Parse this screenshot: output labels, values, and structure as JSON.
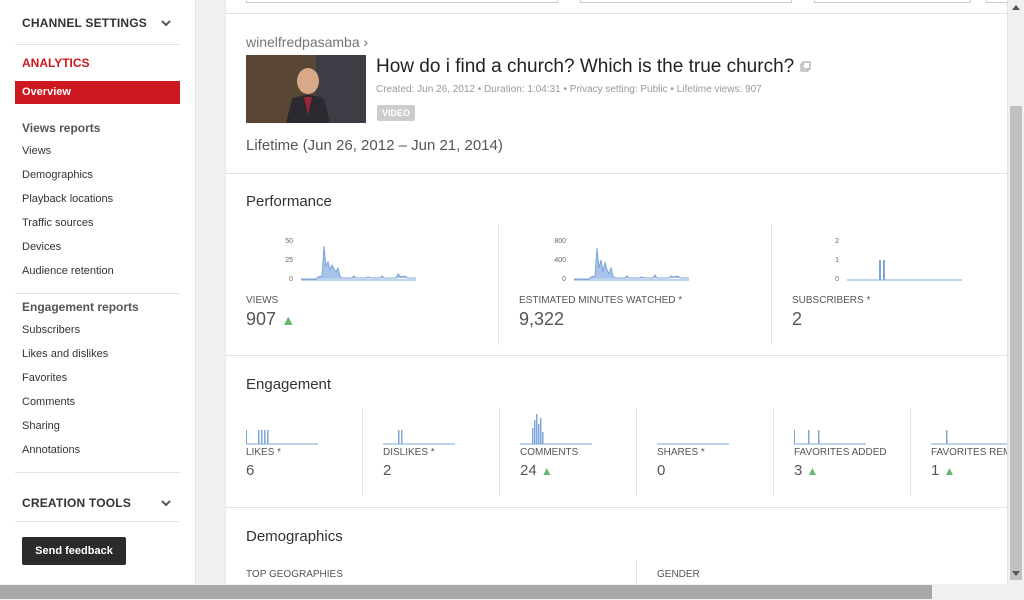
{
  "sidebar": {
    "channel_settings": "CHANNEL SETTINGS",
    "analytics": "ANALYTICS",
    "overview": "Overview",
    "views_reports": "Views reports",
    "views_items": [
      "Views",
      "Demographics",
      "Playback locations",
      "Traffic sources",
      "Devices",
      "Audience retention"
    ],
    "engagement_reports": "Engagement reports",
    "engagement_items": [
      "Subscribers",
      "Likes and dislikes",
      "Favorites",
      "Comments",
      "Sharing",
      "Annotations"
    ],
    "creation_tools": "CREATION TOOLS",
    "send_feedback": "Send feedback"
  },
  "video": {
    "channel": "winelfredpasamba ›",
    "title": "How do i find a church? Which is the true church?",
    "meta": "Created: Jun 26, 2012  •  Duration: 1:04:31  •  Privacy setting: Public  •  Lifetime views: 907",
    "badge": "VIDEO",
    "period": "Lifetime (Jun 26, 2012 – Jun 21, 2014)"
  },
  "performance": {
    "title": "Performance",
    "views": {
      "label": "VIEWS",
      "value": "907",
      "trend": "▲",
      "ticks": [
        "50",
        "25",
        "0"
      ]
    },
    "minutes": {
      "label": "ESTIMATED MINUTES WATCHED *",
      "value": "9,322",
      "ticks": [
        "800",
        "400",
        "0"
      ]
    },
    "subscribers": {
      "label": "SUBSCRIBERS *",
      "value": "2",
      "ticks": [
        "2",
        "1",
        "0"
      ]
    }
  },
  "engagement": {
    "title": "Engagement",
    "likes": {
      "label": "LIKES *",
      "value": "6"
    },
    "dislikes": {
      "label": "DISLIKES *",
      "value": "2"
    },
    "comments": {
      "label": "COMMENTS",
      "value": "24",
      "trend": "▲"
    },
    "shares": {
      "label": "SHARES *",
      "value": "0"
    },
    "favorites_added": {
      "label": "FAVORITES ADDED",
      "value": "3",
      "trend": "▲"
    },
    "favorites_removed": {
      "label": "FAVORITES REMOVED",
      "value": "1",
      "trend": "▲"
    }
  },
  "demographics": {
    "title": "Demographics",
    "top_geographies": "TOP GEOGRAPHIES",
    "gender": "GENDER"
  },
  "colors": {
    "accent": "#cc181e",
    "chart": "#7fa6d8",
    "trend_up": "#66bb6a"
  }
}
